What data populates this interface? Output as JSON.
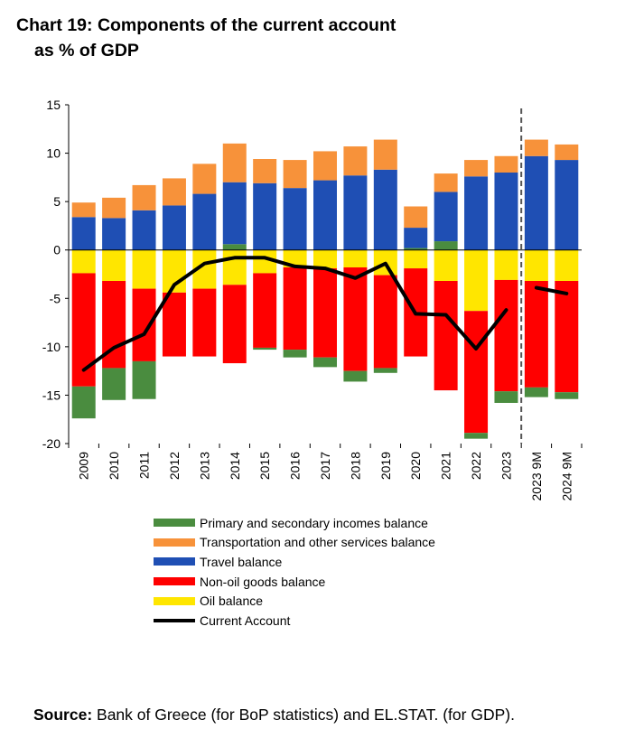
{
  "title_line1": "Chart 19: Components of the current account",
  "title_line2": "as % of GDP",
  "source_label": "Source:",
  "source_text": " Bank of Greece (for BoP statistics) and EL.STAT. (for GDP).",
  "colors": {
    "primary_secondary": "#4a8c3f",
    "transport_services": "#f7923a",
    "travel": "#1f4fb4",
    "non_oil": "#ff0000",
    "oil": "#ffe600",
    "current_account": "#000000"
  },
  "chart_data": {
    "type": "bar",
    "stacked": true,
    "categories": [
      "2009",
      "2010",
      "2011",
      "2012",
      "2013",
      "2014",
      "2015",
      "2016",
      "2017",
      "2018",
      "2019",
      "2020",
      "2021",
      "2022",
      "2023",
      "2023 9M",
      "2024 9M"
    ],
    "ylim": [
      -20,
      15
    ],
    "yticks": [
      15,
      10,
      5,
      0,
      -5,
      -10,
      -15,
      -20
    ],
    "separator_after": "2023",
    "grid": false,
    "legend_position": "bottom",
    "series": [
      {
        "name": "Oil balance",
        "key": "oil",
        "values": [
          -2.4,
          -3.2,
          -4.0,
          -4.4,
          -4.0,
          -3.6,
          -2.4,
          -1.8,
          -1.9,
          -1.8,
          -2.6,
          -1.9,
          -3.2,
          -6.3,
          -3.1,
          -3.2,
          -3.2
        ]
      },
      {
        "name": "Non-oil goods balance",
        "key": "non_oil",
        "values": [
          -11.7,
          -9.0,
          -7.5,
          -6.6,
          -7.0,
          -8.1,
          -7.7,
          -8.5,
          -9.2,
          -10.7,
          -9.6,
          -9.1,
          -11.3,
          -12.6,
          -11.5,
          -11.0,
          -11.5
        ]
      },
      {
        "name": "Primary and secondary incomes balance",
        "key": "primary_secondary",
        "values": [
          -3.3,
          -3.3,
          -3.9,
          0,
          0,
          0.6,
          -0.2,
          -0.8,
          -1.0,
          -1.1,
          -0.5,
          0.2,
          0.9,
          -0.6,
          -1.2,
          -1.0,
          -0.7
        ]
      },
      {
        "name": "Travel balance",
        "key": "travel",
        "values": [
          3.4,
          3.3,
          4.1,
          4.6,
          5.8,
          6.4,
          6.9,
          6.4,
          7.2,
          7.7,
          8.3,
          2.1,
          5.1,
          7.6,
          8.0,
          9.7,
          9.3
        ]
      },
      {
        "name": "Transportation and other services balance",
        "key": "transport_services",
        "values": [
          1.5,
          2.1,
          2.6,
          2.8,
          3.1,
          4.0,
          2.5,
          2.9,
          3.0,
          3.0,
          3.1,
          2.2,
          1.9,
          1.7,
          1.7,
          1.7,
          1.6
        ]
      },
      {
        "name": "Current Account",
        "key": "current_account",
        "type": "line",
        "values": [
          -12.4,
          -10.1,
          -8.7,
          -3.6,
          -1.4,
          -0.8,
          -0.8,
          -1.7,
          -1.9,
          -2.9,
          -1.4,
          -6.6,
          -6.7,
          -10.2,
          -6.2,
          -3.9,
          -4.5
        ]
      }
    ]
  },
  "legend": [
    {
      "label": "Primary and secondary incomes balance",
      "key": "primary_secondary"
    },
    {
      "label": "Transportation and other services balance",
      "key": "transport_services"
    },
    {
      "label": "Travel balance",
      "key": "travel"
    },
    {
      "label": "Non-oil goods balance",
      "key": "non_oil"
    },
    {
      "label": "Oil balance",
      "key": "oil"
    },
    {
      "label": "Current Account",
      "key": "current_account"
    }
  ]
}
